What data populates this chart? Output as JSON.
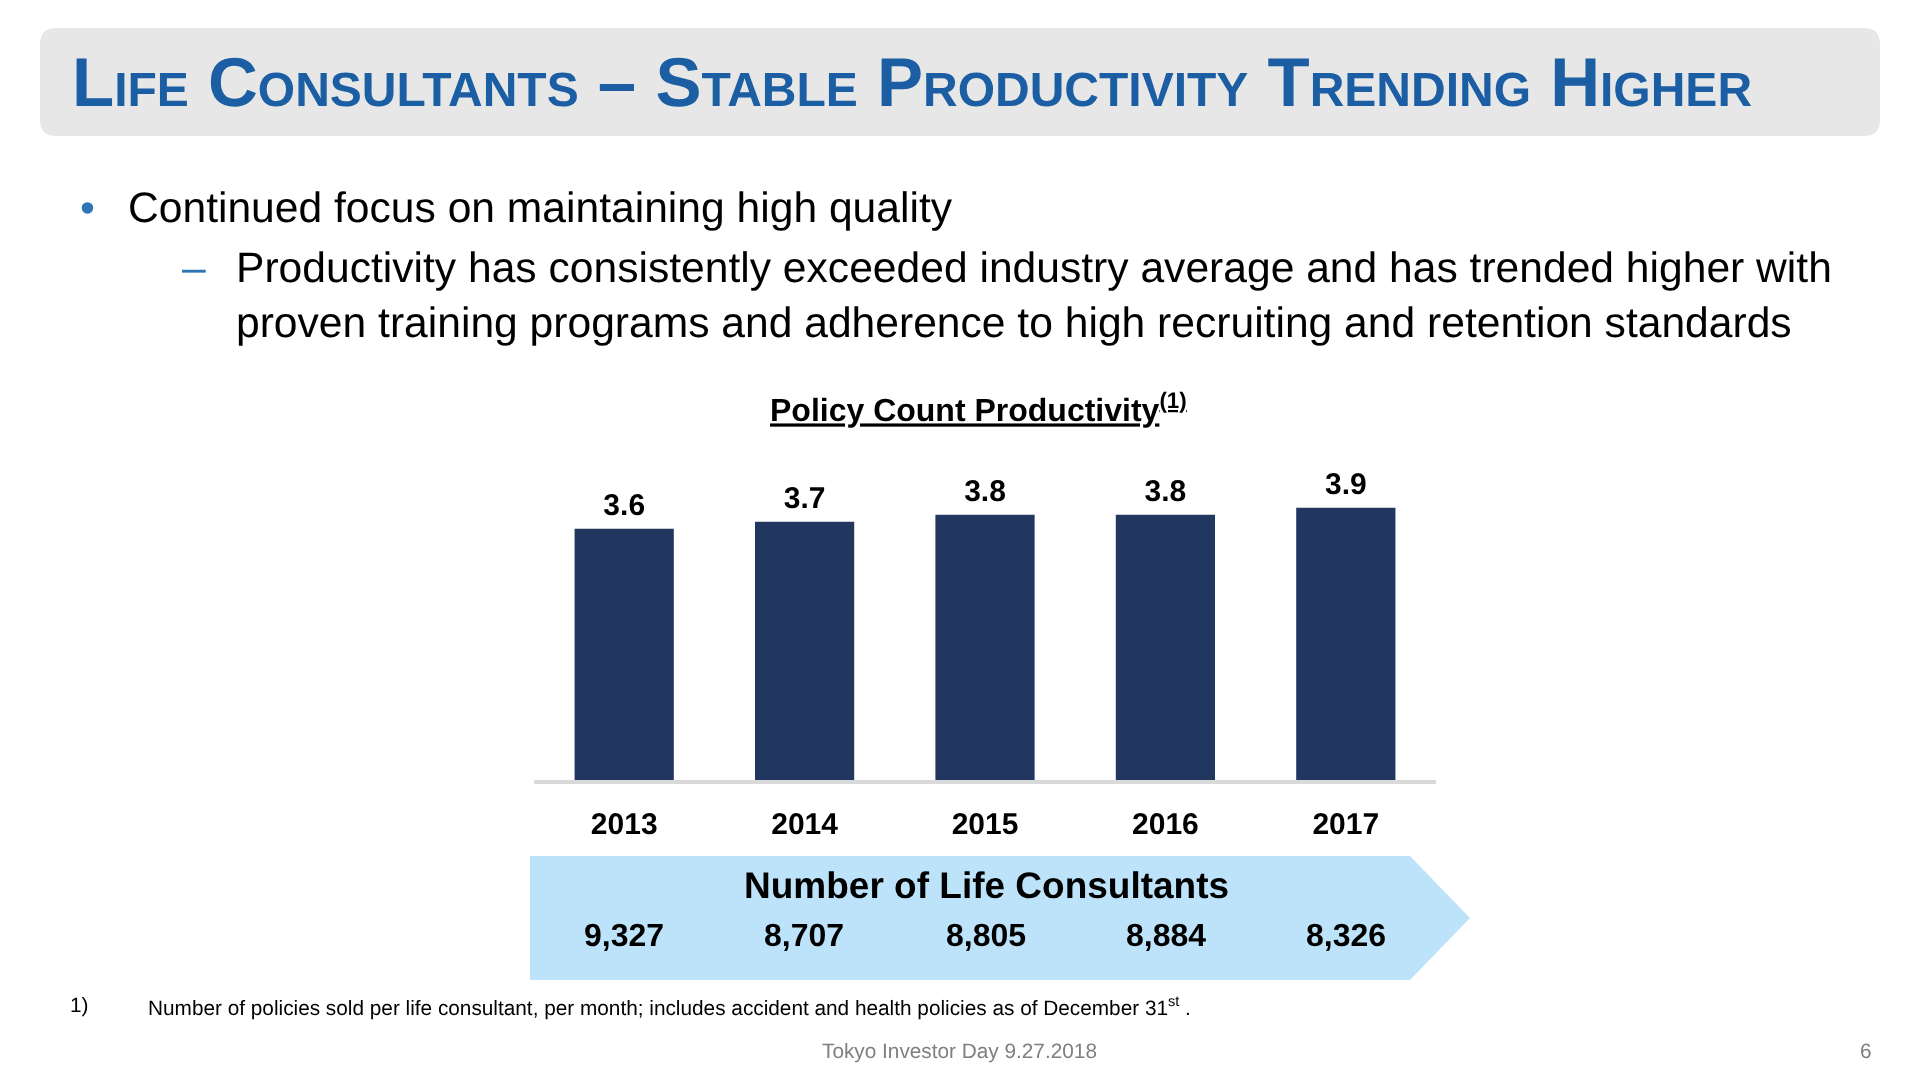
{
  "chart_data": [
    {
      "type": "bar",
      "title": "Policy Count Productivity$^{(1)}$",
      "categories": [
        "2013",
        "2014",
        "2015",
        "2016",
        "2017"
      ],
      "values": [
        3.6,
        3.7,
        3.8,
        3.8,
        3.9
      ],
      "color": "#22375f",
      "data_labels": true,
      "annotations": [
        "Life Consultants – Stable Productivity Trending Higher",
        "•",
        "Continued focus on maintaining high quality",
        "–",
        "Productivity has consistently exceeded industry average and has trended higher with proven training programs and adherence to high recruiting and retention standards",
        "1)",
        "Number of policies sold per life consultant, per month; includes accident and health policies as of December 31$^{st}$ .",
        "Tokyo Investor Day 9.27.2018",
        "6"
      ]
    },
    {
      "type": "other",
      "title": "Number of Life Consultants",
      "annotations": [
        "9,327",
        "8,707",
        "8,805",
        "8,884",
        "8,326"
      ]
    }
  ]
}
